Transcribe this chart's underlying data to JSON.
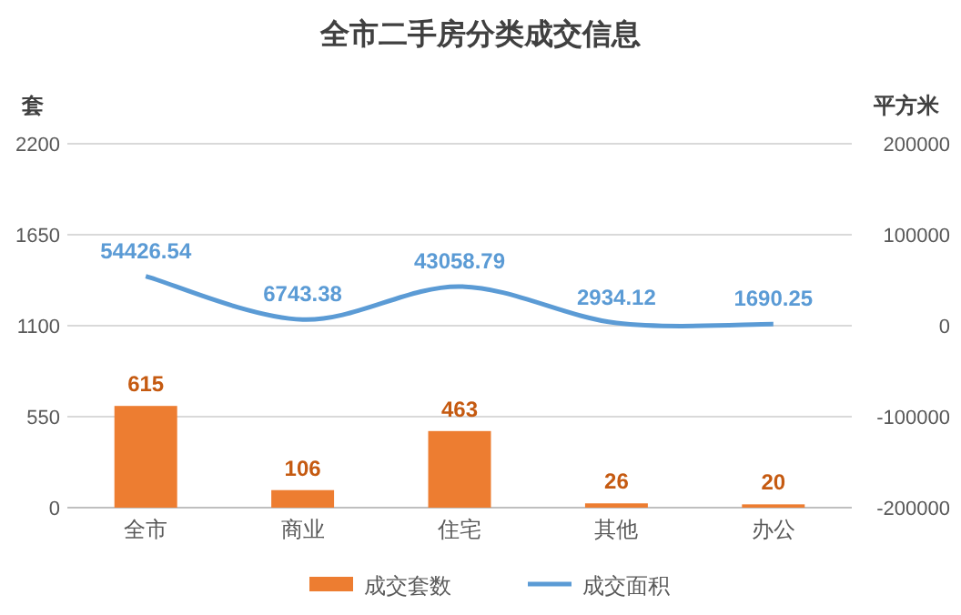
{
  "chart_data": {
    "type": "bar",
    "title": "全市二手房分类成交信息",
    "ylabel": "套",
    "y2label": "平方米",
    "categories": [
      "全市",
      "商业",
      "住宅",
      "其他",
      "办公"
    ],
    "series": [
      {
        "name": "成交套数",
        "color": "#ed7d31",
        "values": [
          615,
          106,
          463,
          26,
          20
        ]
      },
      {
        "name": "成交面积",
        "type": "line",
        "axis": "y2",
        "color": "#5b9bd5",
        "values": [
          54426.54,
          6743.38,
          43058.79,
          2934.12,
          1690.25
        ]
      }
    ],
    "ylim": [
      0,
      2200
    ],
    "yticks": [
      0,
      550,
      1100,
      1650,
      2200
    ],
    "y2lim": [
      -200000,
      200000
    ],
    "y2ticks": [
      -200000,
      -100000,
      0,
      100000,
      200000
    ],
    "grid": "y",
    "legend": "bottom",
    "data_labels": true,
    "marker": "none",
    "line_style": "solid"
  }
}
